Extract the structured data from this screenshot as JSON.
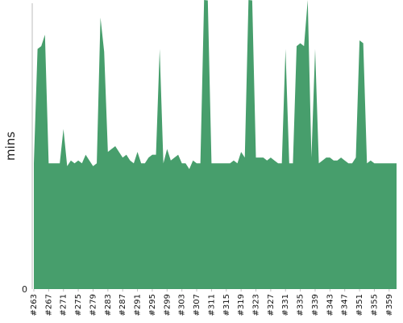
{
  "chart_data": {
    "type": "area",
    "title": "",
    "xlabel": "",
    "ylabel": "mins",
    "ylim": [
      0,
      100
    ],
    "y_ticks": [
      0
    ],
    "grid": false,
    "legend": "none",
    "color": "#479e6c",
    "x_start": 263,
    "x_end": 361,
    "x_tick_labels": [
      "#263",
      "#267",
      "#271",
      "#275",
      "#279",
      "#283",
      "#287",
      "#291",
      "#295",
      "#299",
      "#303",
      "#307",
      "#311",
      "#315",
      "#319",
      "#323",
      "#327",
      "#331",
      "#335",
      "#339",
      "#343",
      "#347",
      "#351",
      "#355",
      "#359"
    ],
    "values": [
      44,
      84,
      85,
      89,
      44,
      44,
      44,
      44,
      56,
      43,
      45,
      44,
      45,
      44,
      47,
      45,
      43,
      44,
      95,
      83,
      48,
      49,
      50,
      48,
      46,
      47,
      45,
      44,
      48,
      44,
      44,
      46,
      47,
      47,
      84,
      44,
      49,
      45,
      46,
      47,
      44,
      44,
      42,
      45,
      44,
      44,
      102,
      101,
      44,
      44,
      44,
      44,
      44,
      44,
      45,
      44,
      48,
      46,
      102,
      101,
      46,
      46,
      46,
      45,
      46,
      45,
      44,
      44,
      84,
      44,
      44,
      85,
      86,
      85,
      104,
      46,
      84,
      44,
      45,
      46,
      46,
      45,
      45,
      46,
      45,
      44,
      44,
      46,
      87,
      86,
      44,
      45,
      44,
      44,
      44,
      44,
      44,
      44,
      44
    ]
  }
}
